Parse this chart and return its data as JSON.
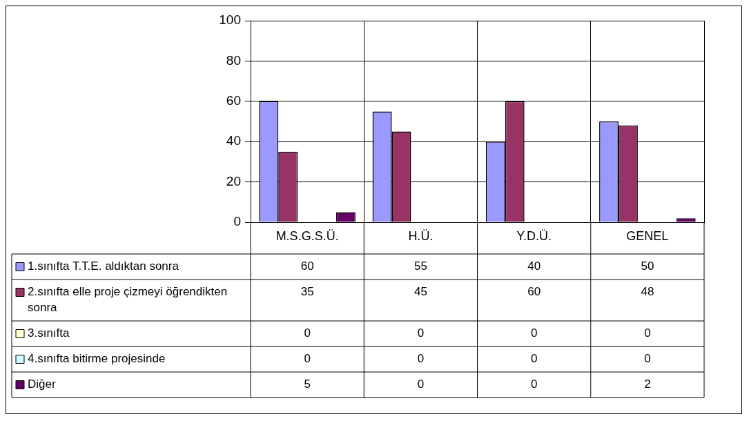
{
  "chart_data": {
    "type": "bar",
    "categories": [
      "M.S.G.S.Ü.",
      "H.Ü.",
      "Y.D.Ü.",
      "GENEL"
    ],
    "series": [
      {
        "name": "1.sınıfta T.T.E. aldıktan sonra",
        "color": "#9999ff",
        "values": [
          60,
          55,
          40,
          50
        ]
      },
      {
        "name": "2.sınıfta elle proje çizmeyi öğrendikten sonra",
        "color": "#993366",
        "values": [
          35,
          45,
          60,
          48
        ]
      },
      {
        "name": "3.sınıfta",
        "color": "#ffffcc",
        "values": [
          0,
          0,
          0,
          0
        ]
      },
      {
        "name": "4.sınıfta bitirme projesinde",
        "color": "#ccffff",
        "values": [
          0,
          0,
          0,
          0
        ]
      },
      {
        "name": "Diğer",
        "color": "#660066",
        "values": [
          5,
          0,
          0,
          2
        ]
      }
    ],
    "ylim": [
      0,
      100
    ],
    "yticks": [
      0,
      20,
      40,
      60,
      80,
      100
    ],
    "grid": true,
    "legend": "bottom left",
    "data_labels": true
  }
}
